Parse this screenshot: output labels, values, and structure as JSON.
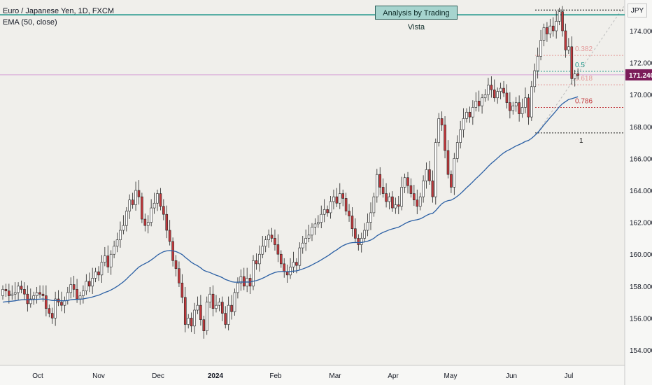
{
  "legend": {
    "symbol": "Euro / Japanese Yen, 1D, FXCM",
    "indicator": "EMA (50, close)"
  },
  "annotation": {
    "text": "Analysis by Trading Vista"
  },
  "currency_label": "JPY",
  "colors": {
    "up": "#ffffff",
    "down": "#c2383c",
    "wick": "#232323",
    "ema": "#2a5fa4",
    "support": "#1b9488",
    "price_line": "#d6a2d6",
    "price_badge": "#7b1c5a"
  },
  "chart_data": {
    "type": "candlestick",
    "y_ticks": [
      "154.000",
      "156.000",
      "158.000",
      "160.000",
      "162.000",
      "164.000",
      "166.000",
      "168.000",
      "170.000",
      "172.000",
      "174.000"
    ],
    "x_ticks": [
      "Oct",
      "Nov",
      "Dec",
      "2024",
      "Feb",
      "Mar",
      "Apr",
      "May",
      "Jun",
      "Jul"
    ],
    "ylim": [
      153,
      176.3
    ],
    "last_price": {
      "value": 171.24,
      "label": "171.240"
    },
    "support_level": 175.0,
    "fibonacci": [
      {
        "label": "0.382",
        "value": 172.46,
        "color": "#e49a9a"
      },
      {
        "label": "0.5",
        "value": 171.46,
        "color": "#1b9488"
      },
      {
        "label": "0.618",
        "value": 170.62,
        "color": "#e49a9a"
      },
      {
        "label": "0.786",
        "value": 169.2,
        "color": "#c2383c"
      },
      {
        "label": "1",
        "value": 167.6,
        "color": "#222222"
      }
    ],
    "fib_top": 175.3,
    "series": [
      {
        "values": [
          157.8,
          157.7,
          157.4,
          157.5,
          157.6,
          158.0,
          157.8,
          157.5,
          156.9,
          157.2,
          157.4,
          157.6,
          157.5,
          157.4,
          156.6,
          156.3,
          156.0,
          157.2,
          157.0,
          156.8,
          157.1,
          157.6,
          158.1,
          157.8,
          157.2,
          157.4,
          157.7,
          158.3,
          158.0,
          158.5,
          158.9,
          158.7,
          159.5,
          159.9,
          159.2,
          160.0,
          160.5,
          160.9,
          161.5,
          161.8,
          162.7,
          163.4,
          163.1,
          164.0,
          163.6,
          162.2,
          161.8,
          162.0,
          162.9,
          163.2,
          163.8,
          163.0,
          162.5,
          161.5,
          160.8,
          159.6,
          159.1,
          158.2,
          157.3,
          155.6,
          156.0,
          155.5,
          156.5,
          156.8,
          155.9,
          155.2,
          157.0,
          157.5,
          156.6,
          156.8,
          157.0,
          156.3,
          155.6,
          156.8,
          156.4,
          157.6,
          158.2,
          158.6,
          158.0,
          158.5,
          158.0,
          159.6,
          159.4,
          160.0,
          160.5,
          160.9,
          161.2,
          161.0,
          160.6,
          160.0,
          159.4,
          158.9,
          158.7,
          159.2,
          159.5,
          159.3,
          160.4,
          160.7,
          161.0,
          161.2,
          161.7,
          161.9,
          162.0,
          162.5,
          162.8,
          162.6,
          163.3,
          163.6,
          163.2,
          163.8,
          163.5,
          162.7,
          162.4,
          161.6,
          161.0,
          160.6,
          161.0,
          161.5,
          162.0,
          162.6,
          163.6,
          165.0,
          164.2,
          163.8,
          163.3,
          163.6,
          162.9,
          163.1,
          163.0,
          164.2,
          164.8,
          164.3,
          163.8,
          163.4,
          163.0,
          163.6,
          164.6,
          165.3,
          164.6,
          163.6,
          167.0,
          168.5,
          168.1,
          166.5,
          165.0,
          164.2,
          166.0,
          167.0,
          167.8,
          168.5,
          168.9,
          168.6,
          169.2,
          169.6,
          169.3,
          169.8,
          170.0,
          170.6,
          170.3,
          169.8,
          170.2,
          170.4,
          170.1,
          169.5,
          169.0,
          169.3,
          169.5,
          168.8,
          169.2,
          169.8,
          168.6,
          170.5,
          171.5,
          172.4,
          173.4,
          174.2,
          173.8,
          174.3,
          174.0,
          174.6,
          175.2,
          174.0,
          172.8,
          173.0,
          171.0,
          171.3,
          171.2
        ]
      }
    ]
  }
}
